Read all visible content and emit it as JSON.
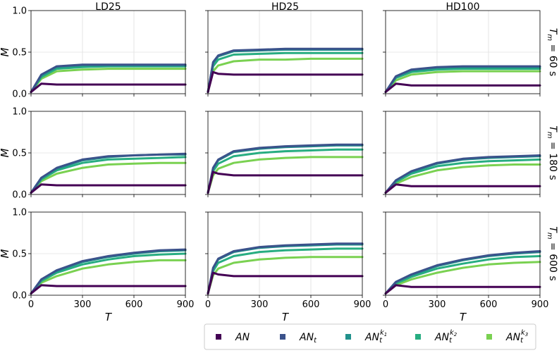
{
  "chart_data": {
    "type": "line",
    "layout": "3x3 small multiples",
    "columns": [
      "LD25",
      "HD25",
      "HD100"
    ],
    "rows": [
      "T_m = 60 s",
      "T_m = 180 s",
      "T_m = 600 s"
    ],
    "xlabel": "T",
    "ylabel": "M",
    "xlim": [
      0,
      900
    ],
    "ylim": [
      0,
      1
    ],
    "xticks": [
      "0",
      "300",
      "600",
      "900"
    ],
    "yticks": [
      "0.0",
      "0.5",
      "1.0"
    ],
    "grid": true,
    "legend_position": "bottom-right",
    "series_styles": [
      {
        "name": "AN",
        "sub": "",
        "sup": "",
        "color": "#440154"
      },
      {
        "name": "AN",
        "sub": "t",
        "sup": "",
        "color": "#3b528b"
      },
      {
        "name": "AN",
        "sub": "t",
        "sup": "k1",
        "color": "#21918c"
      },
      {
        "name": "AN",
        "sub": "t",
        "sup": "k2",
        "color": "#27ad81"
      },
      {
        "name": "AN",
        "sub": "t",
        "sup": "k3",
        "color": "#7ad151"
      }
    ],
    "panels": [
      {
        "column": "LD25",
        "row": "T_m = 60 s",
        "x": [
          0,
          60,
          150,
          300,
          450,
          600,
          750,
          900
        ],
        "series": [
          {
            "values": [
              0.02,
              0.12,
              0.11,
              0.11,
              0.11,
              0.11,
              0.11,
              0.11
            ]
          },
          {
            "values": [
              0.02,
              0.23,
              0.33,
              0.35,
              0.35,
              0.35,
              0.35,
              0.35
            ]
          },
          {
            "values": [
              0.02,
              0.22,
              0.32,
              0.34,
              0.34,
              0.34,
              0.34,
              0.34
            ]
          },
          {
            "values": [
              0.02,
              0.2,
              0.3,
              0.32,
              0.33,
              0.33,
              0.33,
              0.33
            ]
          },
          {
            "values": [
              0.02,
              0.18,
              0.27,
              0.29,
              0.3,
              0.3,
              0.3,
              0.3
            ]
          }
        ]
      },
      {
        "column": "HD25",
        "row": "T_m = 60 s",
        "x": [
          0,
          30,
          60,
          150,
          300,
          450,
          600,
          750,
          900
        ],
        "series": [
          {
            "values": [
              0.02,
              0.26,
              0.24,
              0.23,
              0.23,
              0.23,
              0.23,
              0.23,
              0.23
            ]
          },
          {
            "values": [
              0.02,
              0.38,
              0.46,
              0.52,
              0.53,
              0.54,
              0.54,
              0.54,
              0.54
            ]
          },
          {
            "values": [
              0.02,
              0.37,
              0.45,
              0.51,
              0.52,
              0.53,
              0.53,
              0.53,
              0.53
            ]
          },
          {
            "values": [
              0.02,
              0.33,
              0.41,
              0.47,
              0.48,
              0.49,
              0.49,
              0.49,
              0.49
            ]
          },
          {
            "values": [
              0.02,
              0.27,
              0.34,
              0.39,
              0.41,
              0.41,
              0.42,
              0.42,
              0.42
            ]
          }
        ]
      },
      {
        "column": "HD100",
        "row": "T_m = 60 s",
        "x": [
          0,
          60,
          150,
          300,
          450,
          600,
          750,
          900
        ],
        "series": [
          {
            "values": [
              0.02,
              0.12,
              0.1,
              0.1,
              0.1,
              0.1,
              0.1,
              0.1
            ]
          },
          {
            "values": [
              0.02,
              0.21,
              0.29,
              0.32,
              0.33,
              0.33,
              0.33,
              0.33
            ]
          },
          {
            "values": [
              0.02,
              0.2,
              0.28,
              0.31,
              0.32,
              0.32,
              0.32,
              0.32
            ]
          },
          {
            "values": [
              0.02,
              0.19,
              0.26,
              0.29,
              0.3,
              0.3,
              0.3,
              0.3
            ]
          },
          {
            "values": [
              0.02,
              0.16,
              0.23,
              0.26,
              0.27,
              0.27,
              0.27,
              0.27
            ]
          }
        ]
      },
      {
        "column": "LD25",
        "row": "T_m = 180 s",
        "x": [
          0,
          60,
          150,
          300,
          450,
          600,
          750,
          900
        ],
        "series": [
          {
            "values": [
              0.02,
              0.12,
              0.11,
              0.11,
              0.11,
              0.11,
              0.11,
              0.11
            ]
          },
          {
            "values": [
              0.02,
              0.2,
              0.32,
              0.42,
              0.46,
              0.47,
              0.48,
              0.49
            ]
          },
          {
            "values": [
              0.02,
              0.2,
              0.31,
              0.41,
              0.45,
              0.47,
              0.48,
              0.48
            ]
          },
          {
            "values": [
              0.02,
              0.18,
              0.29,
              0.38,
              0.42,
              0.43,
              0.44,
              0.45
            ]
          },
          {
            "values": [
              0.02,
              0.16,
              0.25,
              0.32,
              0.36,
              0.37,
              0.38,
              0.38
            ]
          }
        ]
      },
      {
        "column": "HD25",
        "row": "T_m = 180 s",
        "x": [
          0,
          30,
          60,
          150,
          300,
          450,
          600,
          750,
          900
        ],
        "series": [
          {
            "values": [
              0.02,
              0.27,
              0.25,
              0.23,
              0.23,
              0.23,
              0.23,
              0.23,
              0.23
            ]
          },
          {
            "values": [
              0.02,
              0.32,
              0.42,
              0.52,
              0.56,
              0.58,
              0.59,
              0.6,
              0.6
            ]
          },
          {
            "values": [
              0.02,
              0.31,
              0.41,
              0.51,
              0.55,
              0.57,
              0.58,
              0.59,
              0.59
            ]
          },
          {
            "values": [
              0.02,
              0.28,
              0.37,
              0.46,
              0.5,
              0.52,
              0.53,
              0.54,
              0.54
            ]
          },
          {
            "values": [
              0.02,
              0.23,
              0.31,
              0.38,
              0.42,
              0.44,
              0.45,
              0.45,
              0.45
            ]
          }
        ]
      },
      {
        "column": "HD100",
        "row": "T_m = 180 s",
        "x": [
          0,
          60,
          150,
          300,
          450,
          600,
          750,
          900
        ],
        "series": [
          {
            "values": [
              0.02,
              0.12,
              0.1,
              0.1,
              0.1,
              0.1,
              0.1,
              0.1
            ]
          },
          {
            "values": [
              0.02,
              0.17,
              0.28,
              0.38,
              0.43,
              0.45,
              0.46,
              0.47
            ]
          },
          {
            "values": [
              0.02,
              0.17,
              0.27,
              0.37,
              0.42,
              0.44,
              0.45,
              0.46
            ]
          },
          {
            "values": [
              0.02,
              0.15,
              0.25,
              0.34,
              0.38,
              0.4,
              0.41,
              0.42
            ]
          },
          {
            "values": [
              0.02,
              0.13,
              0.21,
              0.29,
              0.33,
              0.35,
              0.36,
              0.36
            ]
          }
        ]
      },
      {
        "column": "LD25",
        "row": "T_m = 600 s",
        "x": [
          0,
          60,
          150,
          300,
          450,
          600,
          750,
          900
        ],
        "series": [
          {
            "values": [
              0.02,
              0.12,
              0.11,
              0.11,
              0.11,
              0.11,
              0.11,
              0.11
            ]
          },
          {
            "values": [
              0.02,
              0.19,
              0.3,
              0.41,
              0.47,
              0.51,
              0.54,
              0.55
            ]
          },
          {
            "values": [
              0.02,
              0.19,
              0.29,
              0.4,
              0.46,
              0.5,
              0.53,
              0.54
            ]
          },
          {
            "values": [
              0.02,
              0.17,
              0.27,
              0.37,
              0.43,
              0.47,
              0.49,
              0.5
            ]
          },
          {
            "values": [
              0.02,
              0.15,
              0.23,
              0.32,
              0.37,
              0.4,
              0.42,
              0.42
            ]
          }
        ]
      },
      {
        "column": "HD25",
        "row": "T_m = 600 s",
        "x": [
          0,
          30,
          60,
          150,
          300,
          450,
          600,
          750,
          900
        ],
        "series": [
          {
            "values": [
              0.02,
              0.27,
              0.25,
              0.23,
              0.23,
              0.23,
              0.23,
              0.23,
              0.23
            ]
          },
          {
            "values": [
              0.02,
              0.33,
              0.44,
              0.53,
              0.58,
              0.6,
              0.61,
              0.62,
              0.62
            ]
          },
          {
            "values": [
              0.02,
              0.32,
              0.43,
              0.52,
              0.57,
              0.59,
              0.6,
              0.61,
              0.61
            ]
          },
          {
            "values": [
              0.02,
              0.29,
              0.39,
              0.47,
              0.52,
              0.54,
              0.55,
              0.56,
              0.56
            ]
          },
          {
            "values": [
              0.02,
              0.24,
              0.32,
              0.39,
              0.43,
              0.45,
              0.46,
              0.46,
              0.46
            ]
          }
        ]
      },
      {
        "column": "HD100",
        "row": "T_m = 600 s",
        "x": [
          0,
          60,
          150,
          300,
          450,
          600,
          750,
          900
        ],
        "series": [
          {
            "values": [
              0.02,
              0.12,
              0.1,
              0.1,
              0.1,
              0.1,
              0.1,
              0.1
            ]
          },
          {
            "values": [
              0.02,
              0.16,
              0.25,
              0.36,
              0.43,
              0.48,
              0.51,
              0.53
            ]
          },
          {
            "values": [
              0.02,
              0.16,
              0.24,
              0.35,
              0.42,
              0.47,
              0.5,
              0.52
            ]
          },
          {
            "values": [
              0.02,
              0.14,
              0.22,
              0.32,
              0.38,
              0.43,
              0.46,
              0.47
            ]
          },
          {
            "values": [
              0.02,
              0.12,
              0.19,
              0.27,
              0.33,
              0.37,
              0.39,
              0.4
            ]
          }
        ]
      }
    ]
  }
}
